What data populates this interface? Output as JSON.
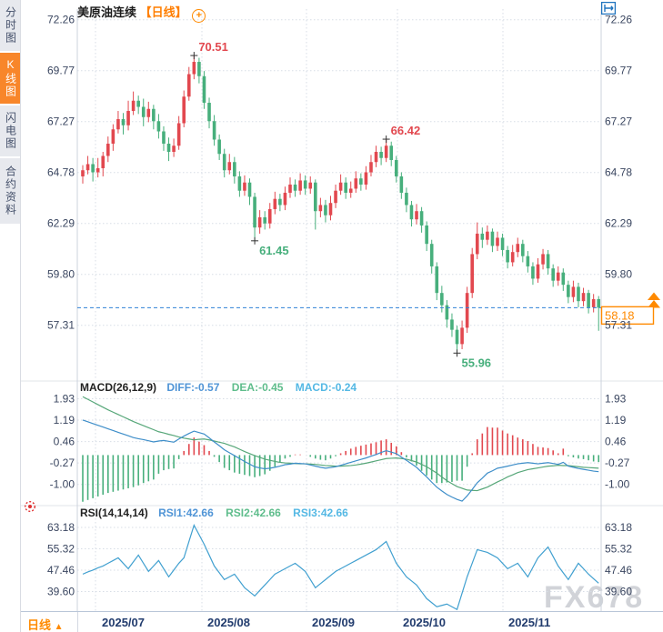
{
  "header": {
    "symbol_name": "美原油连续",
    "period_tag": "【日线】",
    "add_icon_symbol": "+"
  },
  "sidebar": {
    "tabs": [
      {
        "label": "分时图",
        "active": false
      },
      {
        "label": "K线图",
        "active": true
      },
      {
        "label": "闪电图",
        "active": false
      },
      {
        "label": "合约资料",
        "active": false
      }
    ]
  },
  "toolbar": {
    "icons": [
      "pan",
      "zoom-in",
      "zoom-out",
      "exit"
    ]
  },
  "macd_panel": {
    "title": "MACD(26,12,9)",
    "diff_label": "DIFF:-0.57",
    "dea_label": "DEA:-0.45",
    "macd_label": "MACD:-0.24"
  },
  "rsi_panel": {
    "title": "RSI(14,14,14)",
    "rsi1_label": "RSI1:42.66",
    "rsi2_label": "RSI2:42.66",
    "rsi3_label": "RSI3:42.66"
  },
  "bottom_bar": {
    "period_selector": "日线",
    "period_arrow": "▲"
  },
  "watermark": "FX678",
  "last_price_label": "58.18",
  "colors": {
    "up": "#e2484f",
    "down": "#47af7c",
    "diff_line": "#3e8ec9",
    "dea_line": "#57a779",
    "rsi_line": "#41a0d0",
    "accent_orange": "#ff8a00",
    "dashed_price_line": "#2f80d6",
    "axis_text": "#3a4660",
    "month_text": "#223c6e",
    "grid": "#d7dde6",
    "toolbar_blue": "#1e73be",
    "annotation_high": "#e2484f",
    "annotation_low": "#47af7c"
  },
  "chart_data": {
    "type": "candlestick+macd+rsi",
    "symbol": "美原油连续",
    "period": "日线",
    "price_axis_ticks": [
      "72.26",
      "69.77",
      "67.27",
      "64.78",
      "62.29",
      "59.80",
      "57.31"
    ],
    "macd_axis_ticks": [
      "1.93",
      "1.19",
      "0.46",
      "-0.27",
      "-1.00"
    ],
    "rsi_axis_ticks": [
      "63.18",
      "55.32",
      "47.46",
      "39.60"
    ],
    "x_axis_labels": [
      "2025/07",
      "2025/08",
      "2025/09",
      "2025/10",
      "2025/11"
    ],
    "last_price": 58.18,
    "indicator_values": {
      "diff": -0.57,
      "dea": -0.45,
      "macd": -0.24,
      "rsi1": 42.66,
      "rsi2": 42.66,
      "rsi3": 42.66
    },
    "annotations": [
      {
        "index": 22,
        "price": 70.51,
        "text": "70.51",
        "kind": "high"
      },
      {
        "index": 34,
        "price": 61.45,
        "text": "61.45",
        "kind": "low"
      },
      {
        "index": 60,
        "price": 66.42,
        "text": "66.42",
        "kind": "high"
      },
      {
        "index": 74,
        "price": 55.96,
        "text": "55.96",
        "kind": "low"
      }
    ],
    "candles_ohlc": [
      [
        64.6,
        65.15,
        64.25,
        64.9
      ],
      [
        64.9,
        65.6,
        64.7,
        65.2
      ],
      [
        65.2,
        65.5,
        64.35,
        64.8
      ],
      [
        64.8,
        65.5,
        64.55,
        65.0
      ],
      [
        65.0,
        65.8,
        64.6,
        65.6
      ],
      [
        65.6,
        66.55,
        65.3,
        66.2
      ],
      [
        66.2,
        67.15,
        65.85,
        66.9
      ],
      [
        66.9,
        67.8,
        66.7,
        67.4
      ],
      [
        67.4,
        67.7,
        66.65,
        67.1
      ],
      [
        67.1,
        68.3,
        66.85,
        67.8
      ],
      [
        67.8,
        68.75,
        67.6,
        68.3
      ],
      [
        68.3,
        68.55,
        67.65,
        68.0
      ],
      [
        68.0,
        68.4,
        67.05,
        67.5
      ],
      [
        67.5,
        68.25,
        67.25,
        67.9
      ],
      [
        67.9,
        68.1,
        66.9,
        67.3
      ],
      [
        67.3,
        67.65,
        66.45,
        66.8
      ],
      [
        66.8,
        67.05,
        65.85,
        66.2
      ],
      [
        66.2,
        66.5,
        65.35,
        65.8
      ],
      [
        65.8,
        66.45,
        65.55,
        66.1
      ],
      [
        66.1,
        67.55,
        65.9,
        67.2
      ],
      [
        67.2,
        68.8,
        67.0,
        68.5
      ],
      [
        68.5,
        69.95,
        68.3,
        69.6
      ],
      [
        69.6,
        70.51,
        69.35,
        70.2
      ],
      [
        70.2,
        70.4,
        69.15,
        69.5
      ],
      [
        69.5,
        69.75,
        67.9,
        68.2
      ],
      [
        68.2,
        68.45,
        66.95,
        67.3
      ],
      [
        67.3,
        67.6,
        66.1,
        66.4
      ],
      [
        66.4,
        66.65,
        65.4,
        65.7
      ],
      [
        65.7,
        65.95,
        64.55,
        64.9
      ],
      [
        64.9,
        65.7,
        64.7,
        65.3
      ],
      [
        65.3,
        65.55,
        64.25,
        64.6
      ],
      [
        64.6,
        64.85,
        63.6,
        63.9
      ],
      [
        63.9,
        64.65,
        63.65,
        64.3
      ],
      [
        64.3,
        64.5,
        63.2,
        63.6
      ],
      [
        63.6,
        63.8,
        61.45,
        62.1
      ],
      [
        62.1,
        62.95,
        61.8,
        62.6
      ],
      [
        62.6,
        62.9,
        62.0,
        62.3
      ],
      [
        62.3,
        63.3,
        62.05,
        63.0
      ],
      [
        63.0,
        63.85,
        62.75,
        63.5
      ],
      [
        63.5,
        63.75,
        62.9,
        63.2
      ],
      [
        63.2,
        64.1,
        62.95,
        63.8
      ],
      [
        63.8,
        64.55,
        63.55,
        64.2
      ],
      [
        64.2,
        64.45,
        63.6,
        63.9
      ],
      [
        63.9,
        64.75,
        63.7,
        64.4
      ],
      [
        64.4,
        64.65,
        63.7,
        64.0
      ],
      [
        64.0,
        64.6,
        63.75,
        64.3
      ],
      [
        64.3,
        64.45,
        62.0,
        62.9
      ],
      [
        62.9,
        63.55,
        62.6,
        63.2
      ],
      [
        63.2,
        63.45,
        62.35,
        62.7
      ],
      [
        62.7,
        63.65,
        62.45,
        63.3
      ],
      [
        63.3,
        64.2,
        63.05,
        63.9
      ],
      [
        63.9,
        64.7,
        63.7,
        64.3
      ],
      [
        64.3,
        64.55,
        63.5,
        63.8
      ],
      [
        63.8,
        64.35,
        63.55,
        64.0
      ],
      [
        64.0,
        64.85,
        63.8,
        64.5
      ],
      [
        64.5,
        64.75,
        63.9,
        64.2
      ],
      [
        64.2,
        65.1,
        63.95,
        64.8
      ],
      [
        64.8,
        65.65,
        64.6,
        65.3
      ],
      [
        65.3,
        66.1,
        65.05,
        65.8
      ],
      [
        65.8,
        66.05,
        65.15,
        65.5
      ],
      [
        65.5,
        66.42,
        65.3,
        66.1
      ],
      [
        66.1,
        66.3,
        65.1,
        65.4
      ],
      [
        65.4,
        65.6,
        64.3,
        64.6
      ],
      [
        64.6,
        64.8,
        63.5,
        63.8
      ],
      [
        63.8,
        64.05,
        62.85,
        63.2
      ],
      [
        63.2,
        63.4,
        62.15,
        62.5
      ],
      [
        62.5,
        63.25,
        62.25,
        62.9
      ],
      [
        62.9,
        63.1,
        61.85,
        62.2
      ],
      [
        62.2,
        62.4,
        60.95,
        61.3
      ],
      [
        61.3,
        61.5,
        59.85,
        60.2
      ],
      [
        60.2,
        60.4,
        58.55,
        58.9
      ],
      [
        58.9,
        59.25,
        57.95,
        58.3
      ],
      [
        58.3,
        58.55,
        57.2,
        57.6
      ],
      [
        57.6,
        57.9,
        56.75,
        57.1
      ],
      [
        57.1,
        57.3,
        55.96,
        56.4
      ],
      [
        56.4,
        57.55,
        56.15,
        57.2
      ],
      [
        57.2,
        59.2,
        56.95,
        58.9
      ],
      [
        58.9,
        61.1,
        58.65,
        60.8
      ],
      [
        60.8,
        62.35,
        60.55,
        61.8
      ],
      [
        61.8,
        62.1,
        61.1,
        61.5
      ],
      [
        61.5,
        62.2,
        61.25,
        61.9
      ],
      [
        61.9,
        62.05,
        60.9,
        61.2
      ],
      [
        61.2,
        61.9,
        60.95,
        61.6
      ],
      [
        61.6,
        61.8,
        60.7,
        61.0
      ],
      [
        61.0,
        61.2,
        60.1,
        60.4
      ],
      [
        60.4,
        61.25,
        60.2,
        60.9
      ],
      [
        60.9,
        61.6,
        60.65,
        61.3
      ],
      [
        61.3,
        61.5,
        60.4,
        60.7
      ],
      [
        60.7,
        60.95,
        59.9,
        60.2
      ],
      [
        60.2,
        60.4,
        59.3,
        59.6
      ],
      [
        59.6,
        60.6,
        59.4,
        60.3
      ],
      [
        60.3,
        61.05,
        60.05,
        60.8
      ],
      [
        60.8,
        61.0,
        59.8,
        60.1
      ],
      [
        60.1,
        60.3,
        59.2,
        59.5
      ],
      [
        59.5,
        60.2,
        59.25,
        59.9
      ],
      [
        59.9,
        60.1,
        59.0,
        59.3
      ],
      [
        59.3,
        59.5,
        58.4,
        58.7
      ],
      [
        58.7,
        59.5,
        58.45,
        59.2
      ],
      [
        59.2,
        59.4,
        58.2,
        58.5
      ],
      [
        58.5,
        59.15,
        58.25,
        58.9
      ],
      [
        58.9,
        59.05,
        57.9,
        58.2
      ],
      [
        58.2,
        58.85,
        57.95,
        58.6
      ],
      [
        58.6,
        58.75,
        57.05,
        58.18
      ]
    ],
    "macd_diff": [
      1.2,
      1.14,
      1.08,
      1.02,
      0.96,
      0.9,
      0.84,
      0.78,
      0.72,
      0.66,
      0.6,
      0.56,
      0.53,
      0.49,
      0.45,
      0.48,
      0.5,
      0.47,
      0.44,
      0.55,
      0.65,
      0.74,
      0.82,
      0.77,
      0.72,
      0.59,
      0.45,
      0.32,
      0.18,
      0.08,
      -0.02,
      -0.12,
      -0.22,
      -0.31,
      -0.4,
      -0.44,
      -0.47,
      -0.45,
      -0.42,
      -0.38,
      -0.33,
      -0.31,
      -0.28,
      -0.29,
      -0.3,
      -0.34,
      -0.38,
      -0.42,
      -0.45,
      -0.43,
      -0.4,
      -0.35,
      -0.3,
      -0.25,
      -0.2,
      -0.15,
      -0.1,
      -0.04,
      0.02,
      0.09,
      0.15,
      0.1,
      0.05,
      -0.07,
      -0.18,
      -0.3,
      -0.42,
      -0.59,
      -0.75,
      -0.93,
      -1.1,
      -1.23,
      -1.35,
      -1.44,
      -1.52,
      -1.58,
      -1.4,
      -1.18,
      -0.95,
      -0.79,
      -0.62,
      -0.54,
      -0.45,
      -0.42,
      -0.38,
      -0.34,
      -0.3,
      -0.28,
      -0.26,
      -0.28,
      -0.3,
      -0.28,
      -0.26,
      -0.29,
      -0.32,
      -0.25,
      -0.38,
      -0.42,
      -0.46,
      -0.49,
      -0.52,
      -0.55,
      -0.57
    ],
    "macd_dea": [
      2.0,
      1.91,
      1.82,
      1.73,
      1.64,
      1.55,
      1.47,
      1.39,
      1.31,
      1.23,
      1.15,
      1.08,
      1.01,
      0.94,
      0.87,
      0.8,
      0.76,
      0.71,
      0.67,
      0.62,
      0.58,
      0.55,
      0.52,
      0.54,
      0.55,
      0.52,
      0.48,
      0.44,
      0.4,
      0.34,
      0.28,
      0.2,
      0.12,
      0.05,
      -0.02,
      -0.08,
      -0.14,
      -0.18,
      -0.22,
      -0.25,
      -0.27,
      -0.28,
      -0.29,
      -0.3,
      -0.3,
      -0.31,
      -0.32,
      -0.34,
      -0.36,
      -0.37,
      -0.38,
      -0.38,
      -0.37,
      -0.36,
      -0.34,
      -0.31,
      -0.28,
      -0.24,
      -0.2,
      -0.16,
      -0.12,
      -0.11,
      -0.1,
      -0.12,
      -0.14,
      -0.19,
      -0.24,
      -0.32,
      -0.4,
      -0.51,
      -0.62,
      -0.75,
      -0.88,
      -0.98,
      -1.08,
      -1.14,
      -1.2,
      -1.21,
      -1.22,
      -1.16,
      -1.1,
      -1.01,
      -0.92,
      -0.84,
      -0.75,
      -0.68,
      -0.6,
      -0.55,
      -0.5,
      -0.47,
      -0.44,
      -0.41,
      -0.38,
      -0.37,
      -0.35,
      -0.36,
      -0.36,
      -0.38,
      -0.4,
      -0.42,
      -0.43,
      -0.44,
      -0.45
    ],
    "rsi": [
      46,
      46.8,
      47.5,
      48.3,
      49,
      50,
      51,
      52,
      50,
      48,
      50.5,
      53,
      50,
      47,
      49,
      51,
      48,
      45,
      47.5,
      50,
      52,
      58,
      64,
      60.5,
      57,
      53,
      49,
      46.5,
      44,
      45,
      46,
      43.5,
      41,
      39.5,
      38,
      40,
      42,
      44,
      46,
      47,
      48,
      49,
      50,
      48.5,
      47,
      44,
      41,
      42.5,
      44,
      45.5,
      47,
      48,
      49,
      50,
      51,
      52,
      53,
      54,
      55,
      56.5,
      58,
      54,
      50,
      47.5,
      45,
      43.5,
      42,
      39.5,
      37,
      35.5,
      34,
      34.5,
      35,
      34,
      33,
      39,
      45,
      50,
      55,
      54.5,
      54,
      53,
      52,
      50,
      48,
      49,
      50,
      47.5,
      45,
      48.5,
      52,
      54,
      56,
      52.5,
      49,
      46.5,
      44,
      47,
      50,
      48,
      46,
      44.3,
      42.66
    ]
  }
}
